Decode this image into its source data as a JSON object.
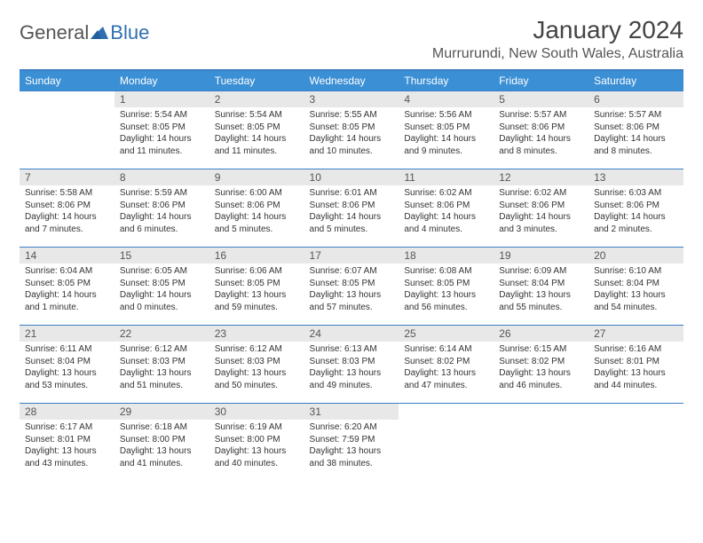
{
  "logo": {
    "general": "General",
    "blue": "Blue"
  },
  "title": "January 2024",
  "location": "Murrurundi, New South Wales, Australia",
  "headers": [
    "Sunday",
    "Monday",
    "Tuesday",
    "Wednesday",
    "Thursday",
    "Friday",
    "Saturday"
  ],
  "colors": {
    "header_bg": "#3b8fd4",
    "header_text": "#ffffff",
    "border": "#3b7fc4",
    "daynum_bg": "#e8e8e8",
    "text": "#333333",
    "logo_gray": "#555555",
    "logo_blue": "#2f6fb0"
  },
  "fonts": {
    "title_pt": 28,
    "location_pt": 16,
    "header_pt": 12,
    "daynum_pt": 12,
    "body_pt": 10
  },
  "grid": {
    "rows": 5,
    "cols": 7,
    "first_day_col": 1,
    "days_in_month": 31
  },
  "days": [
    {
      "n": "1",
      "sunrise": "Sunrise: 5:54 AM",
      "sunset": "Sunset: 8:05 PM",
      "dl1": "Daylight: 14 hours",
      "dl2": "and 11 minutes."
    },
    {
      "n": "2",
      "sunrise": "Sunrise: 5:54 AM",
      "sunset": "Sunset: 8:05 PM",
      "dl1": "Daylight: 14 hours",
      "dl2": "and 11 minutes."
    },
    {
      "n": "3",
      "sunrise": "Sunrise: 5:55 AM",
      "sunset": "Sunset: 8:05 PM",
      "dl1": "Daylight: 14 hours",
      "dl2": "and 10 minutes."
    },
    {
      "n": "4",
      "sunrise": "Sunrise: 5:56 AM",
      "sunset": "Sunset: 8:05 PM",
      "dl1": "Daylight: 14 hours",
      "dl2": "and 9 minutes."
    },
    {
      "n": "5",
      "sunrise": "Sunrise: 5:57 AM",
      "sunset": "Sunset: 8:06 PM",
      "dl1": "Daylight: 14 hours",
      "dl2": "and 8 minutes."
    },
    {
      "n": "6",
      "sunrise": "Sunrise: 5:57 AM",
      "sunset": "Sunset: 8:06 PM",
      "dl1": "Daylight: 14 hours",
      "dl2": "and 8 minutes."
    },
    {
      "n": "7",
      "sunrise": "Sunrise: 5:58 AM",
      "sunset": "Sunset: 8:06 PM",
      "dl1": "Daylight: 14 hours",
      "dl2": "and 7 minutes."
    },
    {
      "n": "8",
      "sunrise": "Sunrise: 5:59 AM",
      "sunset": "Sunset: 8:06 PM",
      "dl1": "Daylight: 14 hours",
      "dl2": "and 6 minutes."
    },
    {
      "n": "9",
      "sunrise": "Sunrise: 6:00 AM",
      "sunset": "Sunset: 8:06 PM",
      "dl1": "Daylight: 14 hours",
      "dl2": "and 5 minutes."
    },
    {
      "n": "10",
      "sunrise": "Sunrise: 6:01 AM",
      "sunset": "Sunset: 8:06 PM",
      "dl1": "Daylight: 14 hours",
      "dl2": "and 5 minutes."
    },
    {
      "n": "11",
      "sunrise": "Sunrise: 6:02 AM",
      "sunset": "Sunset: 8:06 PM",
      "dl1": "Daylight: 14 hours",
      "dl2": "and 4 minutes."
    },
    {
      "n": "12",
      "sunrise": "Sunrise: 6:02 AM",
      "sunset": "Sunset: 8:06 PM",
      "dl1": "Daylight: 14 hours",
      "dl2": "and 3 minutes."
    },
    {
      "n": "13",
      "sunrise": "Sunrise: 6:03 AM",
      "sunset": "Sunset: 8:06 PM",
      "dl1": "Daylight: 14 hours",
      "dl2": "and 2 minutes."
    },
    {
      "n": "14",
      "sunrise": "Sunrise: 6:04 AM",
      "sunset": "Sunset: 8:05 PM",
      "dl1": "Daylight: 14 hours",
      "dl2": "and 1 minute."
    },
    {
      "n": "15",
      "sunrise": "Sunrise: 6:05 AM",
      "sunset": "Sunset: 8:05 PM",
      "dl1": "Daylight: 14 hours",
      "dl2": "and 0 minutes."
    },
    {
      "n": "16",
      "sunrise": "Sunrise: 6:06 AM",
      "sunset": "Sunset: 8:05 PM",
      "dl1": "Daylight: 13 hours",
      "dl2": "and 59 minutes."
    },
    {
      "n": "17",
      "sunrise": "Sunrise: 6:07 AM",
      "sunset": "Sunset: 8:05 PM",
      "dl1": "Daylight: 13 hours",
      "dl2": "and 57 minutes."
    },
    {
      "n": "18",
      "sunrise": "Sunrise: 6:08 AM",
      "sunset": "Sunset: 8:05 PM",
      "dl1": "Daylight: 13 hours",
      "dl2": "and 56 minutes."
    },
    {
      "n": "19",
      "sunrise": "Sunrise: 6:09 AM",
      "sunset": "Sunset: 8:04 PM",
      "dl1": "Daylight: 13 hours",
      "dl2": "and 55 minutes."
    },
    {
      "n": "20",
      "sunrise": "Sunrise: 6:10 AM",
      "sunset": "Sunset: 8:04 PM",
      "dl1": "Daylight: 13 hours",
      "dl2": "and 54 minutes."
    },
    {
      "n": "21",
      "sunrise": "Sunrise: 6:11 AM",
      "sunset": "Sunset: 8:04 PM",
      "dl1": "Daylight: 13 hours",
      "dl2": "and 53 minutes."
    },
    {
      "n": "22",
      "sunrise": "Sunrise: 6:12 AM",
      "sunset": "Sunset: 8:03 PM",
      "dl1": "Daylight: 13 hours",
      "dl2": "and 51 minutes."
    },
    {
      "n": "23",
      "sunrise": "Sunrise: 6:12 AM",
      "sunset": "Sunset: 8:03 PM",
      "dl1": "Daylight: 13 hours",
      "dl2": "and 50 minutes."
    },
    {
      "n": "24",
      "sunrise": "Sunrise: 6:13 AM",
      "sunset": "Sunset: 8:03 PM",
      "dl1": "Daylight: 13 hours",
      "dl2": "and 49 minutes."
    },
    {
      "n": "25",
      "sunrise": "Sunrise: 6:14 AM",
      "sunset": "Sunset: 8:02 PM",
      "dl1": "Daylight: 13 hours",
      "dl2": "and 47 minutes."
    },
    {
      "n": "26",
      "sunrise": "Sunrise: 6:15 AM",
      "sunset": "Sunset: 8:02 PM",
      "dl1": "Daylight: 13 hours",
      "dl2": "and 46 minutes."
    },
    {
      "n": "27",
      "sunrise": "Sunrise: 6:16 AM",
      "sunset": "Sunset: 8:01 PM",
      "dl1": "Daylight: 13 hours",
      "dl2": "and 44 minutes."
    },
    {
      "n": "28",
      "sunrise": "Sunrise: 6:17 AM",
      "sunset": "Sunset: 8:01 PM",
      "dl1": "Daylight: 13 hours",
      "dl2": "and 43 minutes."
    },
    {
      "n": "29",
      "sunrise": "Sunrise: 6:18 AM",
      "sunset": "Sunset: 8:00 PM",
      "dl1": "Daylight: 13 hours",
      "dl2": "and 41 minutes."
    },
    {
      "n": "30",
      "sunrise": "Sunrise: 6:19 AM",
      "sunset": "Sunset: 8:00 PM",
      "dl1": "Daylight: 13 hours",
      "dl2": "and 40 minutes."
    },
    {
      "n": "31",
      "sunrise": "Sunrise: 6:20 AM",
      "sunset": "Sunset: 7:59 PM",
      "dl1": "Daylight: 13 hours",
      "dl2": "and 38 minutes."
    }
  ]
}
